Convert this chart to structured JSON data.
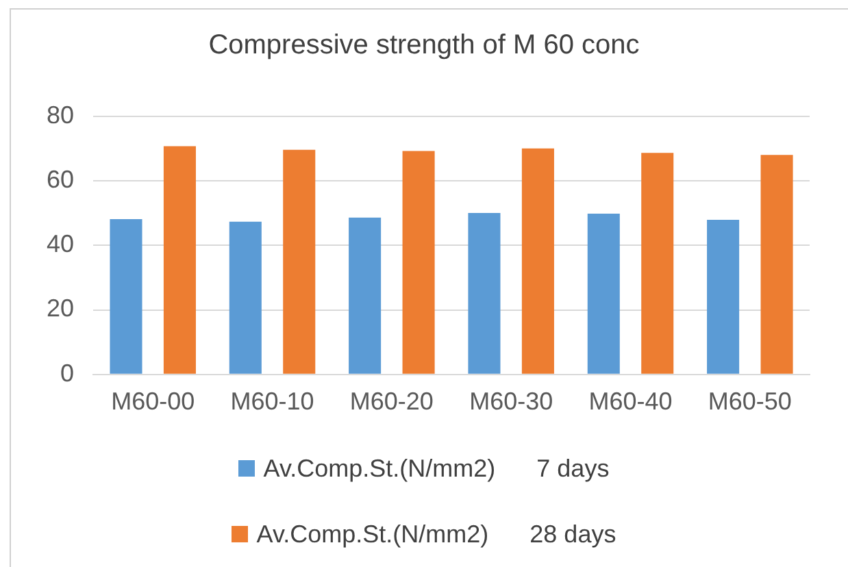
{
  "chart_data": {
    "type": "bar",
    "title": "Compressive strength of M 60 conc",
    "categories": [
      "M60-00",
      "M60-10",
      "M60-20",
      "M60-30",
      "M60-40",
      "M60-50"
    ],
    "series": [
      {
        "name": "Av.Comp.St.(N/mm2)      7 days",
        "color": "#5b9bd5",
        "values": [
          48.1,
          47.3,
          48.6,
          50.0,
          49.8,
          47.9
        ]
      },
      {
        "name": "Av.Comp.St.(N/mm2)      28 days",
        "color": "#ed7d31",
        "values": [
          70.7,
          69.6,
          69.2,
          70.0,
          68.6,
          68.0
        ]
      }
    ],
    "ylim": [
      0,
      80
    ],
    "yticks": [
      0,
      20,
      40,
      60,
      80
    ],
    "grid": "y",
    "legend": "bottom"
  }
}
